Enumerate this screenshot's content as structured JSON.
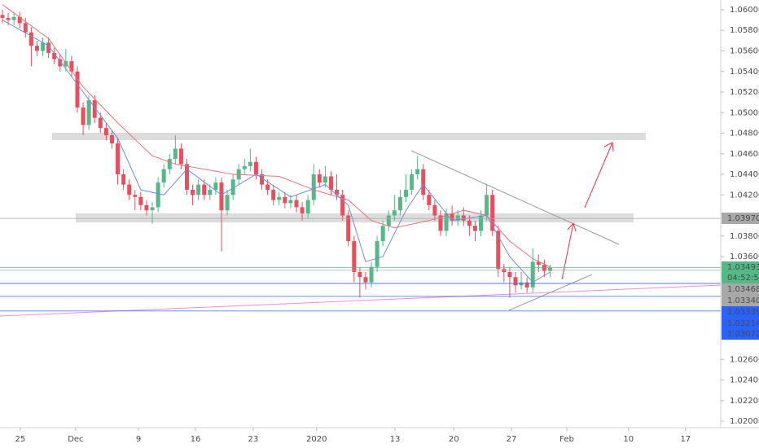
{
  "chart_data": {
    "type": "candlestick",
    "ylim": [
      1.01937,
      1.06095
    ],
    "xlim": [
      -0.42,
      124.6
    ],
    "yticks": [
      {
        "value": 1.02,
        "label": "1.02000"
      },
      {
        "value": 1.022,
        "label": "1.02200"
      },
      {
        "value": 1.024,
        "label": "1.02400"
      },
      {
        "value": 1.026,
        "label": "1.02600"
      },
      {
        "value": 1.036,
        "label": "1.03600"
      },
      {
        "value": 1.038,
        "label": "1.03800"
      },
      {
        "value": 1.042,
        "label": "1.04200"
      },
      {
        "value": 1.044,
        "label": "1.04400"
      },
      {
        "value": 1.046,
        "label": "1.04600"
      },
      {
        "value": 1.048,
        "label": "1.04800"
      },
      {
        "value": 1.05,
        "label": "1.05000"
      },
      {
        "value": 1.052,
        "label": "1.05200"
      },
      {
        "value": 1.054,
        "label": "1.05400"
      },
      {
        "value": 1.056,
        "label": "1.05600"
      },
      {
        "value": 1.058,
        "label": "1.05800"
      },
      {
        "value": 1.06,
        "label": "1.06000"
      }
    ],
    "xticks": [
      {
        "value": 3.1,
        "label": "25"
      },
      {
        "value": 12.7,
        "label": "Dec"
      },
      {
        "value": 23.6,
        "label": "9"
      },
      {
        "value": 33.5,
        "label": "16"
      },
      {
        "value": 43.5,
        "label": "23"
      },
      {
        "value": 54.5,
        "label": "2020"
      },
      {
        "value": 68.1,
        "label": "13"
      },
      {
        "value": 78.3,
        "label": "20"
      },
      {
        "value": 88.3,
        "label": "27"
      },
      {
        "value": 97.9,
        "label": "Feb"
      },
      {
        "value": 108.6,
        "label": "10"
      },
      {
        "value": 118.5,
        "label": "17"
      }
    ],
    "up_color": "#53b987",
    "down_color": "#eb4d5c",
    "open": [
      1.0595,
      1.0592,
      1.059,
      1.0593,
      1.0587,
      1.0578,
      1.0565,
      1.056,
      1.0568,
      1.0558,
      1.0552,
      1.0545,
      1.055,
      1.054,
      1.0505,
      1.0488,
      1.0512,
      1.0495,
      1.0485,
      1.0478,
      1.047,
      1.044,
      1.043,
      1.042,
      1.0418,
      1.041,
      1.0405,
      1.0408,
      1.0432,
      1.0445,
      1.0455,
      1.0465,
      1.045,
      1.0425,
      1.042,
      1.043,
      1.042,
      1.0425,
      1.0432,
      1.0405,
      1.042,
      1.0435,
      1.0445,
      1.0448,
      1.0452,
      1.044,
      1.043,
      1.0425,
      1.0415,
      1.0418,
      1.0412,
      1.0415,
      1.0408,
      1.0402,
      1.0415,
      1.044,
      1.0432,
      1.0438,
      1.0425,
      1.042,
      1.04,
      1.0375,
      1.0345,
      1.034,
      1.0335,
      1.035,
      1.0375,
      1.039,
      1.04,
      1.0405,
      1.0418,
      1.0425,
      1.044,
      1.0445,
      1.042,
      1.041,
      1.04,
      1.0385,
      1.0402,
      1.0395,
      1.04,
      1.0395,
      1.039,
      1.0385,
      1.04,
      1.042,
      1.0385,
      1.0348,
      1.0345,
      1.034,
      1.0332,
      1.0335,
      1.033,
      1.0355,
      1.0352,
      1.0346
    ],
    "high": [
      1.06,
      1.0597,
      1.0598,
      1.0598,
      1.0592,
      1.0583,
      1.057,
      1.0573,
      1.0573,
      1.0563,
      1.0557,
      1.0562,
      1.0555,
      1.0545,
      1.051,
      1.0517,
      1.0517,
      1.05,
      1.049,
      1.0483,
      1.0475,
      1.0445,
      1.0435,
      1.0425,
      1.0423,
      1.0415,
      1.0413,
      1.0437,
      1.045,
      1.046,
      1.0478,
      1.047,
      1.0455,
      1.043,
      1.0435,
      1.0435,
      1.043,
      1.0437,
      1.0437,
      1.0425,
      1.044,
      1.045,
      1.0455,
      1.0465,
      1.0457,
      1.0445,
      1.0435,
      1.043,
      1.0423,
      1.0423,
      1.042,
      1.042,
      1.0413,
      1.042,
      1.045,
      1.0445,
      1.0448,
      1.0443,
      1.044,
      1.0425,
      1.0405,
      1.038,
      1.035,
      1.0345,
      1.0355,
      1.038,
      1.0395,
      1.0405,
      1.042,
      1.0425,
      1.044,
      1.0445,
      1.0458,
      1.045,
      1.0425,
      1.0415,
      1.0405,
      1.0407,
      1.041,
      1.0405,
      1.0408,
      1.04,
      1.0395,
      1.0405,
      1.0431,
      1.0425,
      1.039,
      1.0353,
      1.035,
      1.0345,
      1.0345,
      1.034,
      1.0368,
      1.0362,
      1.0357,
      1.0352
    ],
    "low": [
      1.0587,
      1.0585,
      1.0585,
      1.0582,
      1.0573,
      1.0545,
      1.0555,
      1.0555,
      1.0553,
      1.0547,
      1.054,
      1.054,
      1.0535,
      1.05,
      1.0478,
      1.0483,
      1.049,
      1.048,
      1.0473,
      1.0465,
      1.043,
      1.0425,
      1.0415,
      1.0405,
      1.0405,
      1.04,
      1.0392,
      1.0403,
      1.0427,
      1.044,
      1.045,
      1.0445,
      1.042,
      1.041,
      1.0415,
      1.0415,
      1.0415,
      1.042,
      1.0365,
      1.04,
      1.0415,
      1.043,
      1.044,
      1.0443,
      1.0435,
      1.0425,
      1.042,
      1.041,
      1.041,
      1.0407,
      1.0407,
      1.0403,
      1.0395,
      1.0397,
      1.041,
      1.0427,
      1.0427,
      1.042,
      1.0415,
      1.0395,
      1.037,
      1.0335,
      1.032,
      1.0328,
      1.033,
      1.0345,
      1.037,
      1.0385,
      1.0395,
      1.04,
      1.0413,
      1.042,
      1.0435,
      1.0415,
      1.0405,
      1.0395,
      1.038,
      1.038,
      1.039,
      1.039,
      1.039,
      1.038,
      1.0375,
      1.038,
      1.0395,
      1.038,
      1.034,
      1.0335,
      1.032,
      1.0325,
      1.0328,
      1.0325,
      1.0325,
      1.0345,
      1.034,
      1.034
    ],
    "close": [
      1.0592,
      1.059,
      1.0593,
      1.0587,
      1.0578,
      1.0565,
      1.056,
      1.0568,
      1.0558,
      1.0552,
      1.0545,
      1.055,
      1.054,
      1.0505,
      1.0488,
      1.0512,
      1.0495,
      1.0485,
      1.0478,
      1.047,
      1.044,
      1.043,
      1.042,
      1.0418,
      1.041,
      1.0405,
      1.0408,
      1.0432,
      1.0445,
      1.0455,
      1.0465,
      1.045,
      1.0425,
      1.042,
      1.043,
      1.042,
      1.0425,
      1.0432,
      1.0405,
      1.042,
      1.0435,
      1.0445,
      1.0448,
      1.0452,
      1.044,
      1.043,
      1.0425,
      1.0415,
      1.0418,
      1.0412,
      1.0415,
      1.0408,
      1.0402,
      1.0415,
      1.044,
      1.0432,
      1.0438,
      1.0425,
      1.042,
      1.04,
      1.0375,
      1.0345,
      1.034,
      1.0335,
      1.035,
      1.0375,
      1.039,
      1.04,
      1.0405,
      1.0418,
      1.0425,
      1.044,
      1.0445,
      1.042,
      1.041,
      1.04,
      1.0385,
      1.0402,
      1.0395,
      1.04,
      1.0395,
      1.039,
      1.0385,
      1.04,
      1.042,
      1.0385,
      1.0348,
      1.0345,
      1.034,
      1.0332,
      1.0335,
      1.033,
      1.0355,
      1.0352,
      1.0346,
      1.0349
    ],
    "lines": [
      {
        "color": "#f0707c",
        "x": [
          0,
          8,
          14,
          20,
          26,
          30,
          40,
          48,
          54,
          60,
          64,
          68,
          74,
          80,
          84,
          88,
          92,
          95
        ],
        "values": [
          1.0605,
          1.0572,
          1.0525,
          1.049,
          1.0458,
          1.045,
          1.044,
          1.0438,
          1.0425,
          1.0415,
          1.0395,
          1.0388,
          1.0395,
          1.0405,
          1.04,
          1.0375,
          1.0358,
          1.035
        ]
      },
      {
        "color": "#6a8fe0",
        "x": [
          0,
          8,
          14,
          20,
          24,
          28,
          32,
          38,
          44,
          50,
          56,
          60,
          63,
          66,
          70,
          73,
          78,
          84,
          88,
          92,
          95
        ],
        "values": [
          1.059,
          1.0565,
          1.052,
          1.0475,
          1.0425,
          1.042,
          1.0445,
          1.042,
          1.044,
          1.0418,
          1.043,
          1.041,
          1.0355,
          1.036,
          1.0405,
          1.043,
          1.0395,
          1.04,
          1.036,
          1.0335,
          1.0345
        ]
      }
    ],
    "price_lines": [
      {
        "value": 1.0397,
        "label": "1.03970",
        "color": "#a8a8a8"
      },
      {
        "value": 1.03493,
        "label": "1.03493",
        "color": "#53b987"
      },
      {
        "value": 1.03468,
        "label": "1.03468",
        "color": "#a8a8a8"
      },
      {
        "value": 1.0334,
        "label": "1.03340",
        "color": "#a8a8a8"
      },
      {
        "value": 1.03339,
        "label": "1.03339",
        "color": "#2962ff"
      },
      {
        "value": 1.03214,
        "label": "1.03214",
        "color": "#2962ff"
      },
      {
        "value": 1.03072,
        "label": "1.03072",
        "color": "#2962ff"
      }
    ],
    "countdown": "04:52:51"
  }
}
